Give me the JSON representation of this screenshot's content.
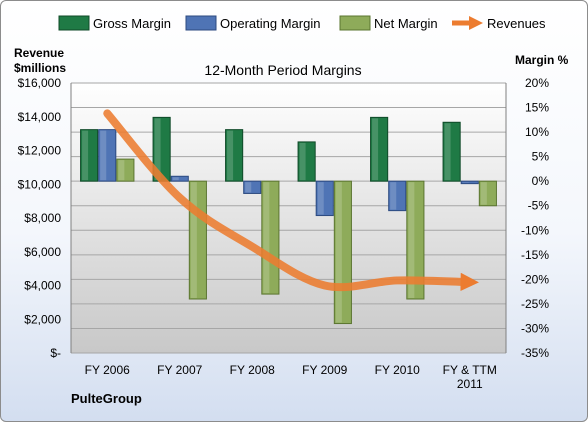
{
  "chart_data": {
    "type": "bar",
    "title": "12-Month Period Margins",
    "company": "PulteGroup",
    "y_left_label_line1": "Revenue",
    "y_left_label_line2": "$millions",
    "y_right_label": "Margin %",
    "categories": [
      "FY 2006",
      "FY 2007",
      "FY 2008",
      "FY 2009",
      "FY 2010",
      "FY & TTM\n2011"
    ],
    "left_ticks": [
      "$-",
      "$2,000",
      "$4,000",
      "$6,000",
      "$8,000",
      "$10,000",
      "$12,000",
      "$14,000",
      "$16,000"
    ],
    "right_ticks": [
      "-35%",
      "-30%",
      "-25%",
      "-20%",
      "-15%",
      "-10%",
      "-5%",
      "0%",
      "5%",
      "10%",
      "15%",
      "20%"
    ],
    "ylim_left": [
      0,
      16000
    ],
    "ylim_right": [
      -35,
      20
    ],
    "grid": true,
    "legend_position": "top",
    "series": [
      {
        "name": "Gross Margin",
        "axis": "right",
        "kind": "bar",
        "color": "#1f7a45",
        "values": [
          10.5,
          13,
          10.5,
          8,
          13,
          12
        ]
      },
      {
        "name": "Operating Margin",
        "axis": "right",
        "kind": "bar",
        "color": "#4f74b5",
        "values": [
          10.5,
          1,
          -2.5,
          -7,
          -6,
          -0.5
        ]
      },
      {
        "name": "Net Margin",
        "axis": "right",
        "kind": "bar",
        "color": "#8eab5a",
        "values": [
          4.5,
          -24,
          -23,
          -29,
          -24,
          -5
        ]
      },
      {
        "name": "Revenues",
        "axis": "left",
        "kind": "line",
        "color": "#ec7c30",
        "values": [
          14200,
          9200,
          6300,
          4000,
          4300,
          4200
        ]
      }
    ]
  }
}
